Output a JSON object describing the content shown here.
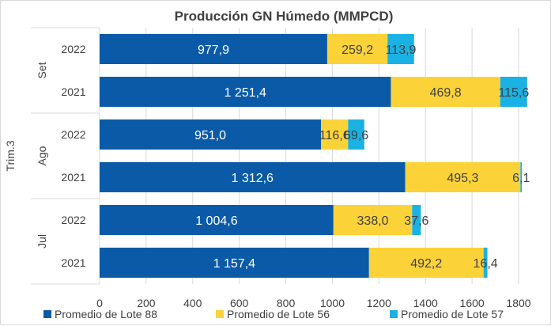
{
  "chart_data": {
    "type": "bar",
    "orientation": "horizontal",
    "stacked": true,
    "title": "Producción GN Húmedo (MMPCD)",
    "xlim": [
      0,
      1800
    ],
    "x_ticks": [
      0,
      200,
      400,
      600,
      800,
      1000,
      1200,
      1400,
      1600,
      1800
    ],
    "grid": true,
    "legend_position": "bottom",
    "group_outer": "Trim.3",
    "groups": [
      {
        "name": "Set",
        "rows": [
          {
            "year": "2022",
            "values": [
              977.9,
              259.2,
              113.9
            ],
            "labels": [
              "977,9",
              "259,2",
              "113,9"
            ]
          },
          {
            "year": "2021",
            "values": [
              1251.4,
              469.8,
              115.6
            ],
            "labels": [
              "1 251,4",
              "469,8",
              "115,6"
            ]
          }
        ]
      },
      {
        "name": "Ago",
        "rows": [
          {
            "year": "2022",
            "values": [
              951.0,
              116.6,
              69.6
            ],
            "labels": [
              "951,0",
              "116,6",
              "69,6"
            ]
          },
          {
            "year": "2021",
            "values": [
              1312.6,
              495.3,
              6.1
            ],
            "labels": [
              "1 312,6",
              "495,3",
              "6,1"
            ]
          }
        ]
      },
      {
        "name": "Jul",
        "rows": [
          {
            "year": "2022",
            "values": [
              1004.6,
              338.0,
              37.6
            ],
            "labels": [
              "1 004,6",
              "338,0",
              "37,6"
            ]
          },
          {
            "year": "2021",
            "values": [
              1157.4,
              492.2,
              16.4
            ],
            "labels": [
              "1 157,4",
              "492,2",
              "16,4"
            ]
          }
        ]
      }
    ],
    "series": [
      {
        "name": "Promedio de Lote 88",
        "color": "#0a5aa8",
        "label_color": "#ffffff"
      },
      {
        "name": "Promedio de Lote 56",
        "color": "#fbd338",
        "label_color": "#404040"
      },
      {
        "name": "Promedio de Lote 57",
        "color": "#1ab2e4",
        "label_color": "#404040"
      }
    ]
  }
}
